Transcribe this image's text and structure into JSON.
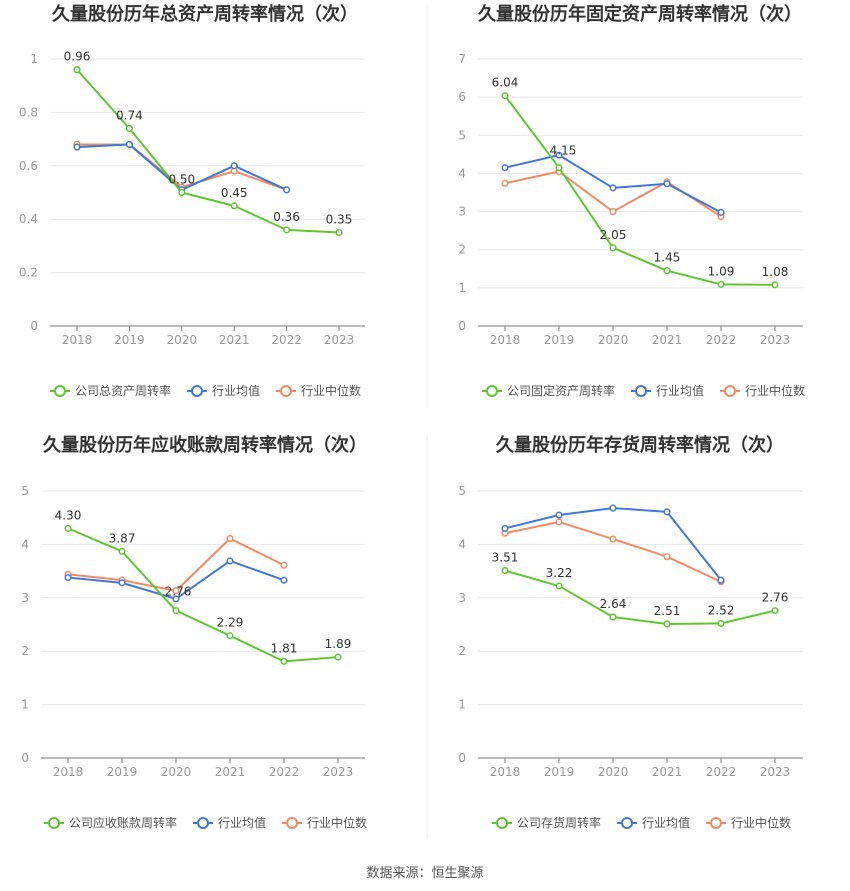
{
  "footer": {
    "source": "数据来源：恒生聚源"
  },
  "colors": {
    "company": "#5ec62e",
    "avg": "#3f78d6",
    "median": "#f08a62"
  },
  "chart_data": [
    {
      "type": "line",
      "title": "久量股份历年总资产周转率情况（次）",
      "categories": [
        "2018",
        "2019",
        "2020",
        "2021",
        "2022",
        "2023"
      ],
      "ylim": [
        0,
        1
      ],
      "yticks": [
        "0",
        "0.2",
        "0.4",
        "0.6",
        "0.8",
        "1"
      ],
      "series": [
        {
          "name": "公司总资产周转率",
          "values": [
            0.96,
            0.74,
            0.5,
            0.45,
            0.36,
            0.35
          ],
          "labels": [
            "0.96",
            "0.74",
            "0.50",
            "0.45",
            "0.36",
            "0.35"
          ]
        },
        {
          "name": "行业均值",
          "values": [
            0.67,
            0.68,
            0.51,
            0.6,
            0.51,
            null
          ]
        },
        {
          "name": "行业中位数",
          "values": [
            0.68,
            0.68,
            0.52,
            0.58,
            0.51,
            null
          ]
        }
      ],
      "grid": true,
      "legend": "bottom"
    },
    {
      "type": "line",
      "title": "久量股份历年固定资产周转率情况（次）",
      "categories": [
        "2018",
        "2019",
        "2020",
        "2021",
        "2022",
        "2023"
      ],
      "ylim": [
        0,
        7
      ],
      "yticks": [
        "0",
        "1",
        "2",
        "3",
        "4",
        "5",
        "6",
        "7"
      ],
      "series": [
        {
          "name": "公司固定资产周转率",
          "values": [
            6.04,
            4.15,
            2.05,
            1.45,
            1.09,
            1.08
          ],
          "labels": [
            "6.04",
            "4.15",
            "2.05",
            "1.45",
            "1.09",
            "1.08"
          ]
        },
        {
          "name": "行业均值",
          "values": [
            4.15,
            4.48,
            3.62,
            3.73,
            2.98,
            null
          ]
        },
        {
          "name": "行业中位数",
          "values": [
            3.74,
            4.05,
            3.0,
            3.78,
            2.87,
            null
          ]
        }
      ],
      "grid": true,
      "legend": "bottom"
    },
    {
      "type": "line",
      "title": "久量股份历年应收账款周转率情况（次）",
      "categories": [
        "2018",
        "2019",
        "2020",
        "2021",
        "2022",
        "2023"
      ],
      "ylim": [
        0,
        5
      ],
      "yticks": [
        "0",
        "1",
        "2",
        "3",
        "4",
        "5"
      ],
      "series": [
        {
          "name": "公司应收账款周转率",
          "values": [
            4.3,
            3.87,
            2.76,
            2.29,
            1.81,
            1.89
          ],
          "labels": [
            "4.30",
            "3.87",
            "2.76",
            "2.29",
            "1.81",
            "1.89"
          ]
        },
        {
          "name": "行业均值",
          "values": [
            3.38,
            3.28,
            2.98,
            3.69,
            3.33,
            null
          ]
        },
        {
          "name": "行业中位数",
          "values": [
            3.44,
            3.33,
            3.13,
            4.11,
            3.61,
            null
          ]
        }
      ],
      "grid": true,
      "legend": "bottom"
    },
    {
      "type": "line",
      "title": "久量股份历年存货周转率情况（次）",
      "categories": [
        "2018",
        "2019",
        "2020",
        "2021",
        "2022",
        "2023"
      ],
      "ylim": [
        0,
        5
      ],
      "yticks": [
        "0",
        "1",
        "2",
        "3",
        "4",
        "5"
      ],
      "series": [
        {
          "name": "公司存货周转率",
          "values": [
            3.51,
            3.22,
            2.64,
            2.51,
            2.52,
            2.76
          ],
          "labels": [
            "3.51",
            "3.22",
            "2.64",
            "2.51",
            "2.52",
            "2.76"
          ]
        },
        {
          "name": "行业均值",
          "values": [
            4.3,
            4.55,
            4.68,
            4.61,
            3.33,
            null
          ]
        },
        {
          "name": "行业中位数",
          "values": [
            4.21,
            4.42,
            4.1,
            3.77,
            3.3,
            null
          ]
        }
      ],
      "grid": true,
      "legend": "bottom"
    }
  ]
}
